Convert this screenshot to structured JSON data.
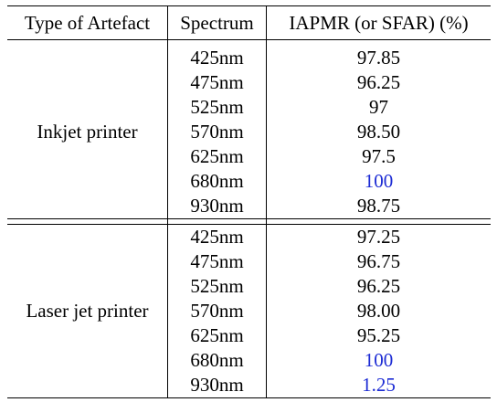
{
  "table": {
    "headers": {
      "type": "Type of Artefact",
      "spectrum": "Spectrum",
      "metric": "IAPMR (or SFAR) (%)"
    },
    "groups": [
      {
        "type": "Inkjet printer",
        "rows": [
          {
            "spectrum": "425nm",
            "value": "97.85",
            "highlight": false
          },
          {
            "spectrum": "475nm",
            "value": "96.25",
            "highlight": false
          },
          {
            "spectrum": "525nm",
            "value": "97",
            "highlight": false
          },
          {
            "spectrum": "570nm",
            "value": "98.50",
            "highlight": false
          },
          {
            "spectrum": "625nm",
            "value": "97.5",
            "highlight": false
          },
          {
            "spectrum": "680nm",
            "value": "100",
            "highlight": true
          },
          {
            "spectrum": "930nm",
            "value": "98.75",
            "highlight": false
          }
        ]
      },
      {
        "type": "Laser jet printer",
        "rows": [
          {
            "spectrum": "425nm",
            "value": "97.25",
            "highlight": false
          },
          {
            "spectrum": "475nm",
            "value": "96.75",
            "highlight": false
          },
          {
            "spectrum": "525nm",
            "value": "96.25",
            "highlight": false
          },
          {
            "spectrum": "570nm",
            "value": "98.00",
            "highlight": false
          },
          {
            "spectrum": "625nm",
            "value": "95.25",
            "highlight": false
          },
          {
            "spectrum": "680nm",
            "value": "100",
            "highlight": true
          },
          {
            "spectrum": "930nm",
            "value": "1.25",
            "highlight": true
          }
        ]
      }
    ],
    "highlight_color": "#1c2bd4"
  }
}
